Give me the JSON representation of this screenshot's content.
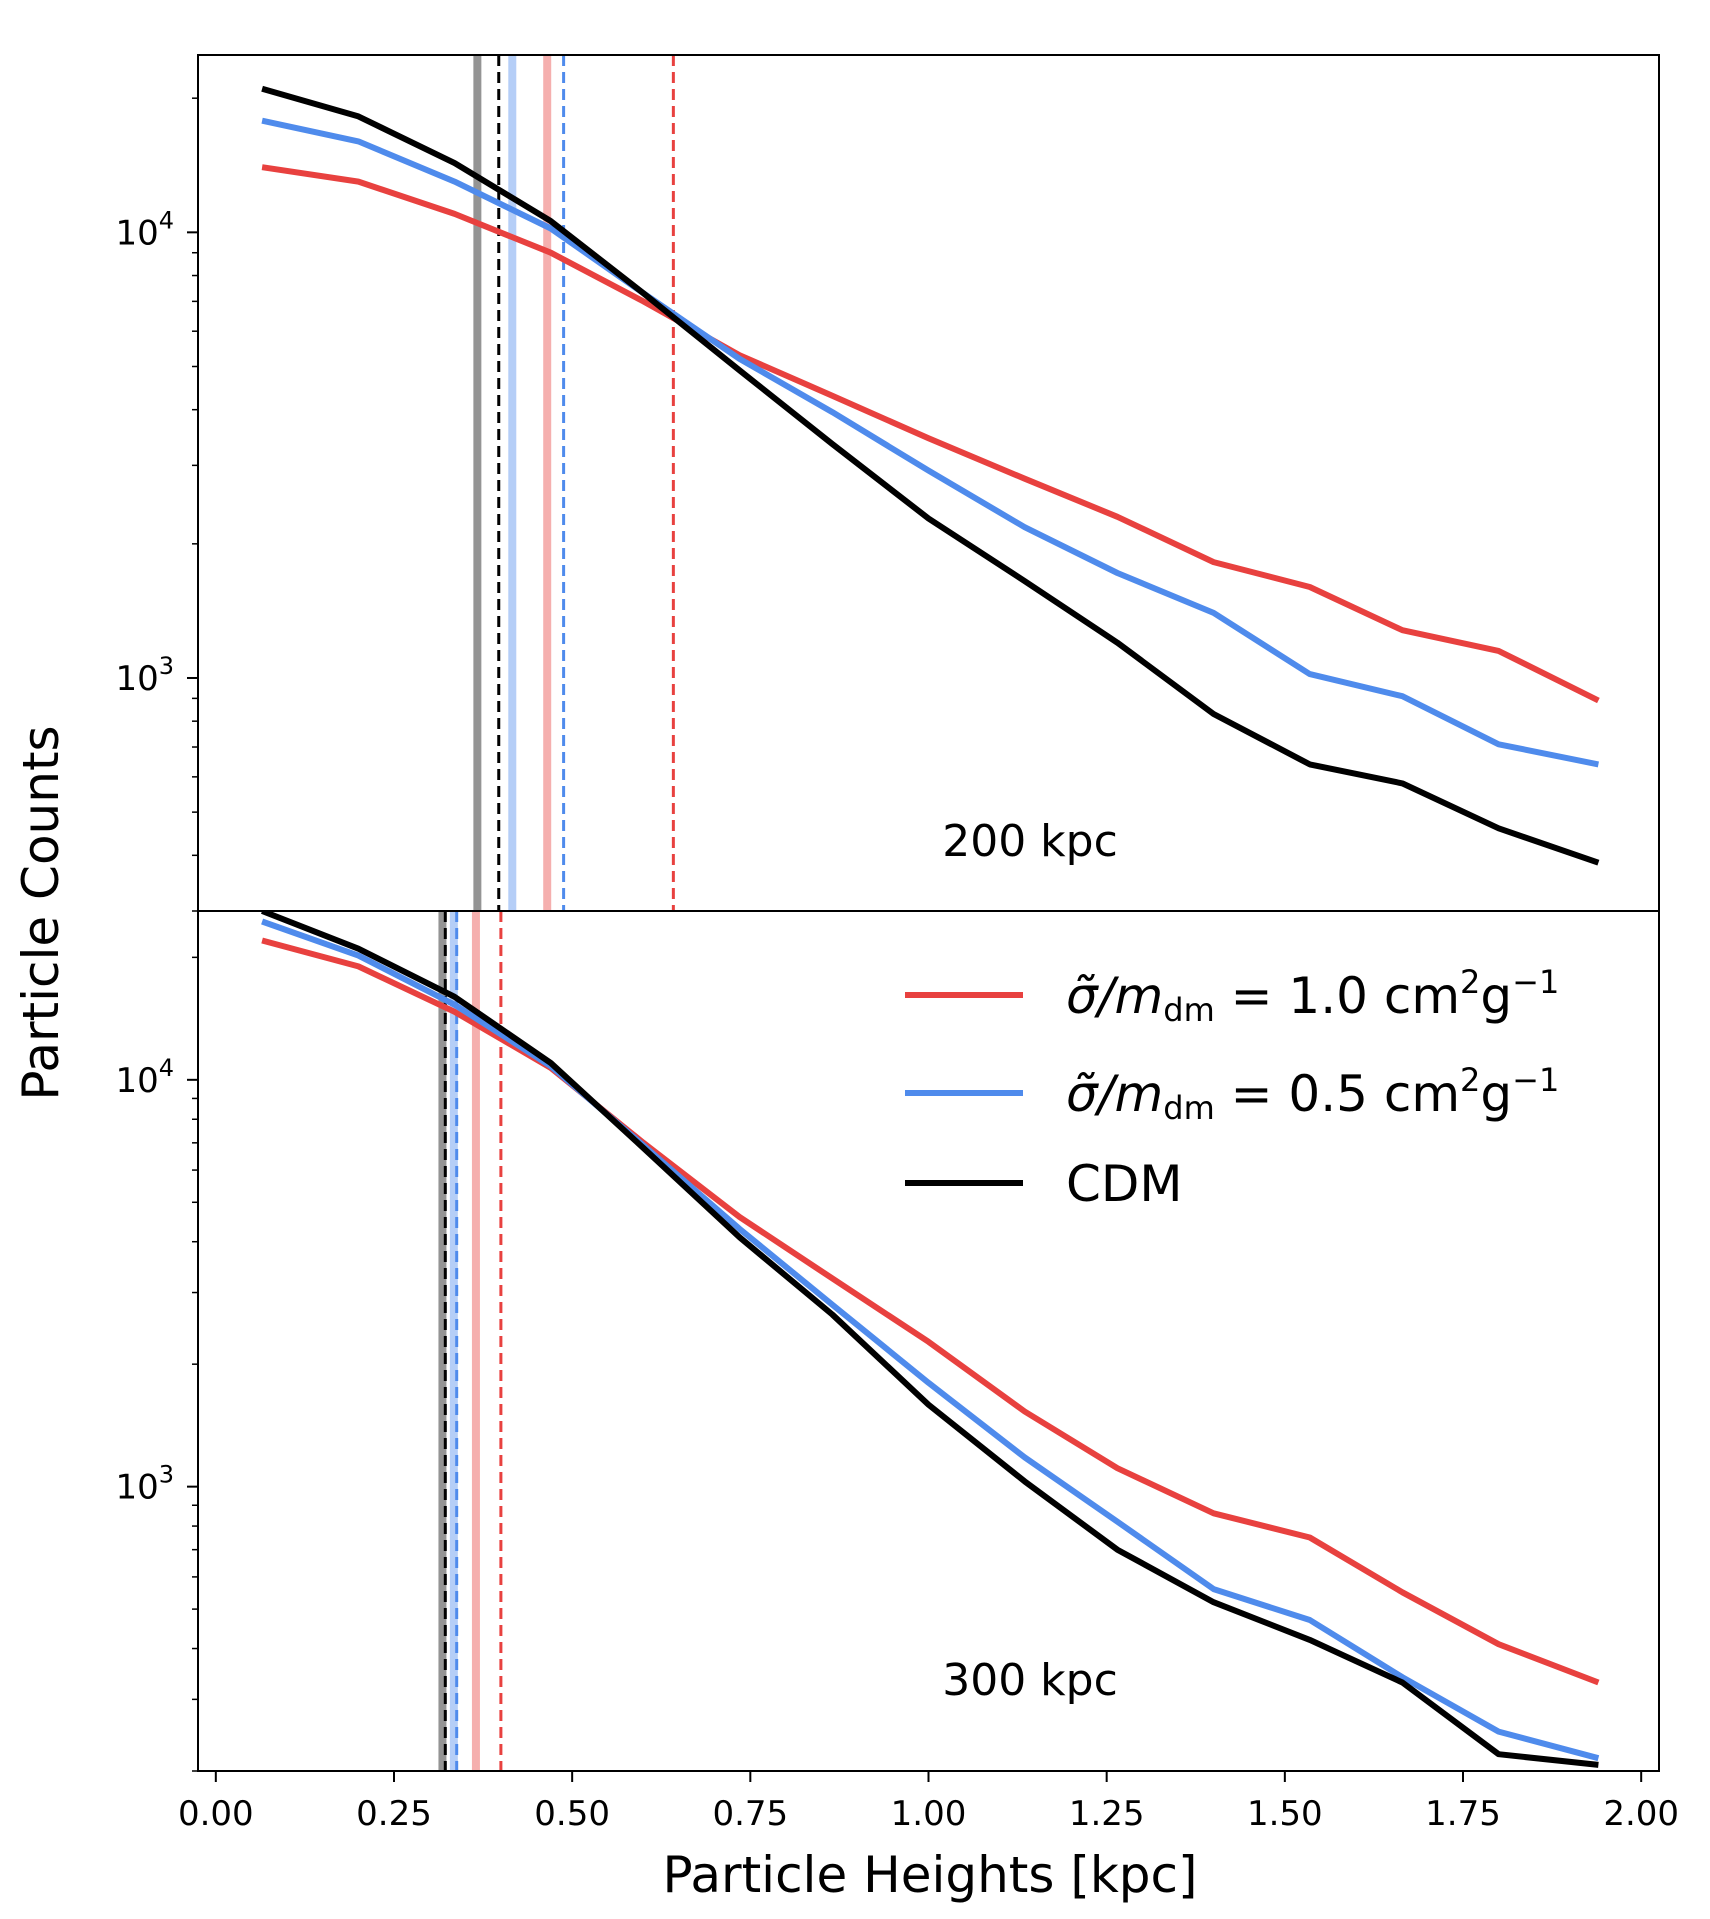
{
  "chart_data": {
    "type": "line",
    "xlabel": "Particle Heights [kpc]",
    "ylabel": "Particle Counts",
    "xlim": [
      -0.025,
      2.025
    ],
    "xticks": [
      0.0,
      0.25,
      0.5,
      0.75,
      1.0,
      1.25,
      1.5,
      1.75,
      2.0
    ],
    "xtick_labels": [
      "0.00",
      "0.25",
      "0.50",
      "0.75",
      "1.00",
      "1.25",
      "1.50",
      "1.75",
      "2.00"
    ],
    "yscale": "log",
    "legend": {
      "location": "upper right of bottom panel",
      "entries": [
        {
          "key": "sidm1",
          "prefix": "σ̃/m",
          "sub": "dm",
          "value": " = 1.0 cm",
          "sup1": "2",
          "unit": "g",
          "sup2": "−1",
          "color": "#e8413f"
        },
        {
          "key": "sidm05",
          "prefix": "σ̃/m",
          "sub": "dm",
          "value": " = 0.5 cm",
          "sup1": "2",
          "unit": "g",
          "sup2": "−1",
          "color": "#4f8bec"
        },
        {
          "key": "cdm",
          "label": "CDM",
          "color": "#000000"
        }
      ]
    },
    "colors": {
      "sidm1": "#e8413f",
      "sidm05": "#4f8bec",
      "cdm": "#000000"
    },
    "panels": [
      {
        "label": "200 kpc",
        "ylim": [
          300,
          25000
        ],
        "yticks": [
          {
            "value": 1000,
            "base": "10",
            "exp": "3"
          },
          {
            "value": 10000,
            "base": "10",
            "exp": "4"
          }
        ],
        "x": [
          0.065,
          0.2,
          0.335,
          0.47,
          0.6,
          0.735,
          0.865,
          1.0,
          1.135,
          1.265,
          1.4,
          1.535,
          1.665,
          1.8,
          1.94
        ],
        "series": [
          {
            "key": "sidm1",
            "name": "σ̃/m_dm = 1.0 cm²g⁻¹",
            "values": [
              14000,
              13000,
              11000,
              9000,
              7000,
              5300,
              4300,
              3450,
              2800,
              2300,
              1820,
              1600,
              1280,
              1150,
              890
            ]
          },
          {
            "key": "sidm05",
            "name": "σ̃/m_dm = 0.5 cm²g⁻¹",
            "values": [
              17800,
              16000,
              13000,
              10200,
              7300,
              5200,
              3950,
              2920,
              2180,
              1720,
              1400,
              1020,
              910,
              710,
              640
            ]
          },
          {
            "key": "cdm",
            "name": "CDM",
            "values": [
              21000,
              18200,
              14300,
              10600,
              7300,
              4900,
              3350,
              2280,
              1650,
              1200,
              830,
              640,
              580,
              460,
              385
            ]
          }
        ],
        "vlines": [
          {
            "key": "cdm",
            "style": "solid",
            "x": 0.367
          },
          {
            "key": "sidm05",
            "style": "solid",
            "x": 0.416
          },
          {
            "key": "sidm1",
            "style": "solid",
            "x": 0.465
          },
          {
            "key": "cdm",
            "style": "dashed",
            "x": 0.397
          },
          {
            "key": "sidm05",
            "style": "dashed",
            "x": 0.488
          },
          {
            "key": "sidm1",
            "style": "dashed",
            "x": 0.642
          }
        ]
      },
      {
        "label": "300 kpc",
        "ylim": [
          200,
          26000
        ],
        "yticks": [
          {
            "value": 1000,
            "base": "10",
            "exp": "3"
          },
          {
            "value": 10000,
            "base": "10",
            "exp": "4"
          }
        ],
        "x": [
          0.065,
          0.2,
          0.335,
          0.47,
          0.6,
          0.735,
          0.865,
          1.0,
          1.135,
          1.265,
          1.4,
          1.535,
          1.665,
          1.8,
          1.94
        ],
        "series": [
          {
            "key": "sidm1",
            "name": "σ̃/m_dm = 1.0 cm²g⁻¹",
            "values": [
              22000,
              19000,
              14700,
              10700,
              7000,
              4600,
              3250,
              2270,
              1530,
              1110,
              860,
              750,
              550,
              410,
              330
            ]
          },
          {
            "key": "sidm05",
            "name": "σ̃/m_dm = 0.5 cm²g⁻¹",
            "values": [
              24500,
              20200,
              15300,
              10800,
              6900,
              4300,
              2800,
              1800,
              1180,
              820,
              560,
              470,
              340,
              250,
              215
            ]
          },
          {
            "key": "cdm",
            "name": "CDM",
            "values": [
              26000,
              21000,
              16000,
              11000,
              6800,
              4100,
              2650,
              1590,
              1030,
              700,
              520,
              420,
              330,
              220,
              207
            ]
          }
        ],
        "vlines": [
          {
            "key": "cdm",
            "style": "solid",
            "x": 0.318
          },
          {
            "key": "sidm05",
            "style": "solid",
            "x": 0.334
          },
          {
            "key": "sidm1",
            "style": "solid",
            "x": 0.365
          },
          {
            "key": "cdm",
            "style": "dashed",
            "x": 0.322
          },
          {
            "key": "sidm05",
            "style": "dashed",
            "x": 0.338
          },
          {
            "key": "sidm1",
            "style": "dashed",
            "x": 0.4
          }
        ]
      }
    ]
  }
}
